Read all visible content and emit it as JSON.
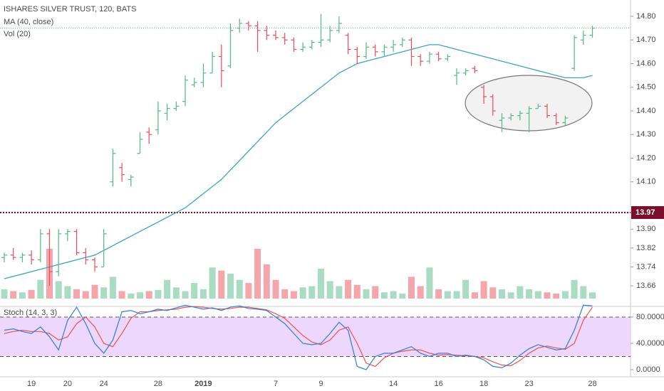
{
  "chart_data": [
    {
      "type": "ohlc",
      "title": "ISHARES SILVER TRUST, 120, BATS",
      "categories": [
        null,
        null,
        null,
        "19",
        null,
        null,
        null,
        "20",
        null,
        null,
        null,
        "24",
        null,
        null,
        null,
        null,
        null,
        "28",
        null,
        null,
        null,
        null,
        "2019",
        null,
        null,
        null,
        null,
        null,
        null,
        null,
        "7",
        null,
        null,
        null,
        null,
        "9",
        null,
        null,
        null,
        null,
        null,
        null,
        null,
        "14",
        null,
        null,
        null,
        null,
        "16",
        null,
        null,
        null,
        null,
        "18",
        null,
        null,
        null,
        null,
        "23",
        null,
        null,
        null,
        null,
        null,
        null,
        "28"
      ],
      "open": [
        13.78,
        13.79,
        13.78,
        13.79,
        13.77,
        13.88,
        13.72,
        13.88,
        13.89,
        13.8,
        13.77,
        13.74,
        14.1,
        14.16,
        14.11,
        14.22,
        14.31,
        14.32,
        14.39,
        14.41,
        14.44,
        14.51,
        14.52,
        14.56,
        14.63,
        14.59,
        14.75,
        14.77,
        14.76,
        14.74,
        14.72,
        14.71,
        14.7,
        14.66,
        14.67,
        14.69,
        14.7,
        14.74,
        14.72,
        14.66,
        14.63,
        14.67,
        14.65,
        14.67,
        14.68,
        14.7,
        14.63,
        14.61,
        14.64,
        14.62,
        14.55,
        14.56,
        14.58,
        14.5,
        14.46,
        14.36,
        14.37,
        14.38,
        14.39,
        14.41,
        14.42,
        14.38,
        14.35,
        14.58,
        14.7,
        14.72
      ],
      "high": [
        13.8,
        13.82,
        13.8,
        13.81,
        13.9,
        13.9,
        13.9,
        13.9,
        13.9,
        13.82,
        13.78,
        13.9,
        14.24,
        14.18,
        14.13,
        14.31,
        14.33,
        14.44,
        14.43,
        14.44,
        14.55,
        14.54,
        14.6,
        14.65,
        14.68,
        14.77,
        14.79,
        14.78,
        14.78,
        14.76,
        14.74,
        14.73,
        14.71,
        14.69,
        14.7,
        14.81,
        14.76,
        14.8,
        14.73,
        14.67,
        14.69,
        14.68,
        14.68,
        14.7,
        14.71,
        14.71,
        14.64,
        14.65,
        14.65,
        14.64,
        14.58,
        14.58,
        14.59,
        14.51,
        14.47,
        14.39,
        14.39,
        14.4,
        14.42,
        14.43,
        14.43,
        14.39,
        14.38,
        14.72,
        14.74,
        14.76
      ],
      "low": [
        13.76,
        13.77,
        13.76,
        13.75,
        13.76,
        13.66,
        13.7,
        13.85,
        13.79,
        13.75,
        13.72,
        13.74,
        14.08,
        14.1,
        14.08,
        14.22,
        14.26,
        14.3,
        14.36,
        14.4,
        14.42,
        14.5,
        14.5,
        14.56,
        14.5,
        14.58,
        14.73,
        14.74,
        14.65,
        14.7,
        14.7,
        14.68,
        14.65,
        14.65,
        14.66,
        14.67,
        14.69,
        14.73,
        14.64,
        14.6,
        14.62,
        14.63,
        14.63,
        14.65,
        14.67,
        14.59,
        14.59,
        14.6,
        14.61,
        14.61,
        14.51,
        14.55,
        14.56,
        14.43,
        14.38,
        14.31,
        14.36,
        14.36,
        14.31,
        14.41,
        14.37,
        14.34,
        14.34,
        14.57,
        14.68,
        14.71
      ],
      "close": [
        13.79,
        13.78,
        13.79,
        13.77,
        13.88,
        13.72,
        13.88,
        13.89,
        13.8,
        13.77,
        13.74,
        13.88,
        14.22,
        14.13,
        14.12,
        14.28,
        14.3,
        14.4,
        14.41,
        14.42,
        14.53,
        14.52,
        14.56,
        14.63,
        14.57,
        14.74,
        14.77,
        14.76,
        14.74,
        14.72,
        14.71,
        14.7,
        14.66,
        14.67,
        14.69,
        14.7,
        14.74,
        14.77,
        14.66,
        14.63,
        14.67,
        14.65,
        14.67,
        14.68,
        14.7,
        14.63,
        14.61,
        14.64,
        14.62,
        14.63,
        14.56,
        14.57,
        14.57,
        14.46,
        14.4,
        14.37,
        14.38,
        14.39,
        14.41,
        14.42,
        14.38,
        14.35,
        14.37,
        14.71,
        14.72,
        14.75
      ],
      "up_color": "#53b987",
      "down_color": "#eb4d5c",
      "series": [
        {
          "name": "MA (40, close)",
          "color": "#3ea4c4",
          "values": [
            13.69,
            13.7,
            13.71,
            13.72,
            13.73,
            13.74,
            13.75,
            13.76,
            13.77,
            13.78,
            13.79,
            13.81,
            13.83,
            13.85,
            13.87,
            13.89,
            13.91,
            13.93,
            13.95,
            13.97,
            13.99,
            14.02,
            14.05,
            14.08,
            14.11,
            14.15,
            14.19,
            14.23,
            14.27,
            14.31,
            14.35,
            14.38,
            14.41,
            14.44,
            14.47,
            14.5,
            14.53,
            14.56,
            14.58,
            14.6,
            14.61,
            14.62,
            14.63,
            14.64,
            14.65,
            14.66,
            14.67,
            14.68,
            14.68,
            14.67,
            14.66,
            14.65,
            14.64,
            14.63,
            14.62,
            14.61,
            14.6,
            14.59,
            14.58,
            14.57,
            14.56,
            14.55,
            14.54,
            14.54,
            14.54,
            14.55
          ]
        },
        {
          "name": "Vol (20)",
          "values": [
            15,
            12,
            10,
            14,
            30,
            80,
            28,
            20,
            15,
            12,
            22,
            18,
            35,
            12,
            8,
            10,
            12,
            14,
            30,
            18,
            12,
            25,
            15,
            50,
            45,
            40,
            30,
            25,
            80,
            55,
            30,
            15,
            12,
            18,
            20,
            48,
            28,
            20,
            30,
            22,
            15,
            20,
            10,
            12,
            8,
            35,
            20,
            50,
            15,
            12,
            12,
            30,
            10,
            28,
            18,
            15,
            10,
            20,
            15,
            12,
            10,
            8,
            12,
            30,
            20,
            10
          ]
        }
      ],
      "horizontal_line": 13.97,
      "ylim": [
        13.576,
        14.869
      ],
      "yticks": [
        {
          "value": 13.66,
          "label": "13.66"
        },
        {
          "value": 13.74,
          "label": "13.74"
        },
        {
          "value": 13.82,
          "label": "13.82"
        },
        {
          "value": 13.9,
          "label": "13.90"
        },
        {
          "value": 14.1,
          "label": "14.10"
        },
        {
          "value": 14.2,
          "label": "14.20"
        },
        {
          "value": 14.3,
          "label": "14.30"
        },
        {
          "value": 14.4,
          "label": "14.40"
        },
        {
          "value": 14.5,
          "label": "14.50"
        },
        {
          "value": 14.6,
          "label": "14.60"
        },
        {
          "value": 14.7,
          "label": "14.70"
        },
        {
          "value": 14.8,
          "label": "14.80"
        }
      ]
    },
    {
      "type": "line",
      "title": "Stoch (14, 3, 3)",
      "series": [
        {
          "color": "#2f7ed8",
          "values": [
            60,
            62,
            58,
            55,
            65,
            50,
            30,
            75,
            95,
            70,
            40,
            25,
            45,
            88,
            90,
            85,
            88,
            92,
            90,
            94,
            98,
            95,
            92,
            94,
            90,
            95,
            97,
            93,
            92,
            90,
            80,
            70,
            55,
            40,
            38,
            40,
            55,
            72,
            60,
            5,
            0,
            20,
            25,
            25,
            30,
            35,
            25,
            20,
            25,
            25,
            20,
            22,
            20,
            15,
            5,
            3,
            10,
            22,
            32,
            38,
            34,
            30,
            32,
            60,
            98,
            97
          ]
        },
        {
          "color": "#f0524f",
          "values": [
            55,
            58,
            60,
            58,
            58,
            55,
            45,
            50,
            70,
            80,
            65,
            40,
            35,
            55,
            78,
            88,
            88,
            90,
            91,
            92,
            95,
            96,
            95,
            93,
            92,
            93,
            95,
            95,
            93,
            91,
            85,
            78,
            65,
            52,
            42,
            38,
            45,
            60,
            65,
            40,
            10,
            5,
            18,
            25,
            28,
            30,
            30,
            25,
            22,
            23,
            22,
            21,
            20,
            18,
            12,
            7,
            6,
            14,
            25,
            33,
            36,
            33,
            31,
            40,
            75,
            95
          ]
        }
      ],
      "bands": [
        20,
        80
      ],
      "band_color": "#e9cdfb",
      "ylim": [
        -10.8,
        95.1
      ],
      "yticks": [
        {
          "value": 0,
          "label": "0.0000"
        },
        {
          "value": 40,
          "label": "40.0000"
        },
        {
          "value": 80,
          "label": "80.0000"
        }
      ]
    }
  ]
}
